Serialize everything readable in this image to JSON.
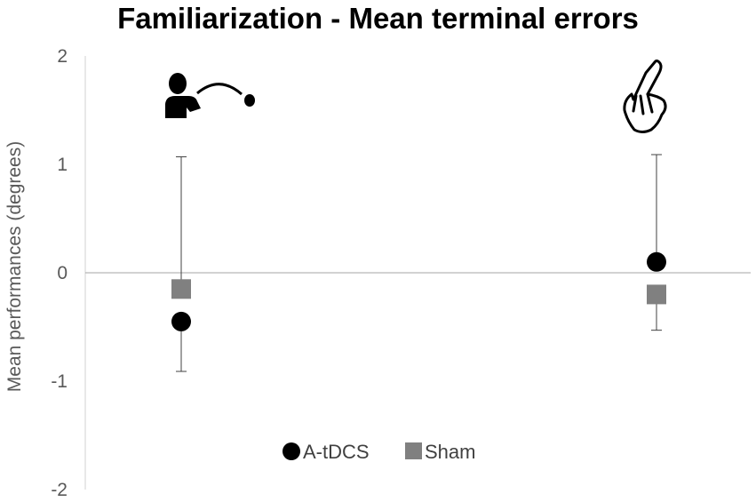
{
  "chart_data": {
    "type": "scatter",
    "title": "Familiarization - Mean terminal errors",
    "xlabel": "",
    "ylabel": "Mean performances (degrees)",
    "ylim": [
      -2,
      2
    ],
    "yticks": [
      2,
      1,
      0,
      -1,
      -2
    ],
    "categories": [
      "Throwing task",
      "Pointing task"
    ],
    "category_icons": [
      "throwing-person-icon",
      "pointing-hand-icon"
    ],
    "grid": false,
    "legend_position": "bottom",
    "series": [
      {
        "name": "A-tDCS",
        "marker": "circle",
        "color": "#000000",
        "values": [
          -0.45,
          0.1
        ],
        "error_low": [
          -0.91,
          null
        ],
        "error_high": [
          null,
          1.09
        ]
      },
      {
        "name": "Sham",
        "marker": "square",
        "color": "#808080",
        "values": [
          -0.15,
          -0.2
        ],
        "error_low": [
          null,
          -0.53
        ],
        "error_high": [
          1.07,
          null
        ]
      }
    ]
  }
}
